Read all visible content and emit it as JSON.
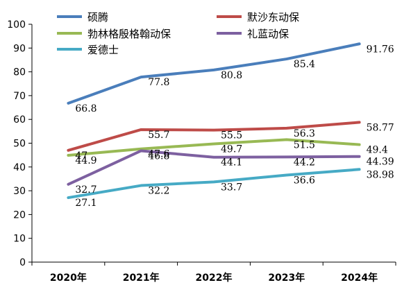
{
  "chart_data": {
    "type": "line",
    "title": "",
    "xlabel": "",
    "ylabel": "",
    "categories": [
      "2020年",
      "2021年",
      "2022年",
      "2023年",
      "2024年"
    ],
    "ylim": [
      0,
      100
    ],
    "yticks": [
      0,
      10,
      20,
      30,
      40,
      50,
      60,
      70,
      80,
      90,
      100
    ],
    "grid": false,
    "legend": "top",
    "series": [
      {
        "name": "硕腾",
        "color": "#4a7ebb",
        "values": [
          66.8,
          77.8,
          80.8,
          85.4,
          91.76
        ],
        "labels": [
          "66.8",
          "77.8",
          "80.8",
          "85.4",
          "91.76"
        ]
      },
      {
        "name": "默沙东动保",
        "color": "#be4b48",
        "values": [
          47,
          55.7,
          55.5,
          56.3,
          58.77
        ],
        "labels": [
          "47",
          "55.7",
          "55.5",
          "56.3",
          "58.77"
        ]
      },
      {
        "name": "勃林格殷格翰动保",
        "color": "#98b954",
        "values": [
          44.9,
          47.6,
          49.7,
          51.5,
          49.4
        ],
        "labels": [
          "44.9",
          "47.6",
          "49.7",
          "51.5",
          "49.4"
        ]
      },
      {
        "name": "礼蓝动保",
        "color": "#7d60a0",
        "values": [
          32.7,
          46.8,
          44.1,
          44.2,
          44.39
        ],
        "labels": [
          "32.7",
          "46.8",
          "44.1",
          "44.2",
          "44.39"
        ]
      },
      {
        "name": "爱德士",
        "color": "#46aac5",
        "values": [
          27.1,
          32.2,
          33.7,
          36.6,
          38.98
        ],
        "labels": [
          "27.1",
          "32.2",
          "33.7",
          "36.6",
          "38.98"
        ]
      }
    ]
  }
}
